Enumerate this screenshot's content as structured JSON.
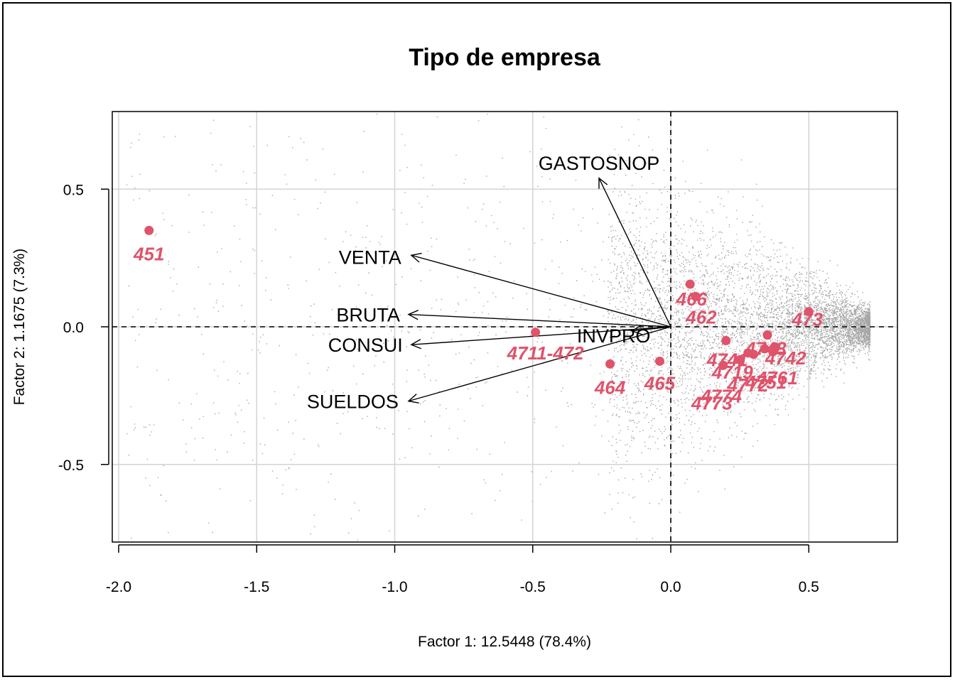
{
  "chart_data": {
    "type": "scatter",
    "title": "Tipo de empresa",
    "xlabel": "Factor 1: 12.5448 (78.4%)",
    "ylabel": "Factor 2: 1.1675 (7.3%)",
    "xlim": [
      -2.0,
      0.75
    ],
    "ylim": [
      -0.75,
      0.75
    ],
    "xticks": [
      -2.0,
      -1.5,
      -1.0,
      -0.5,
      0.0,
      0.5
    ],
    "xtick_labels": [
      "-2.0",
      "-1.5",
      "-1.0",
      "-0.5",
      "0.0",
      "0.5"
    ],
    "yticks": [
      -0.5,
      0.0,
      0.5
    ],
    "ytick_labels": [
      "-0.5",
      "0.0",
      "0.5"
    ],
    "grid": true,
    "colors": {
      "category": "#df536b",
      "background_points": "#a6a6a6",
      "arrows": "#000000",
      "grid": "#d3d3d3"
    },
    "variables": [
      {
        "name": "GASTOSNOP",
        "x": -0.26,
        "y": 0.54
      },
      {
        "name": "VENTA",
        "x": -0.94,
        "y": 0.26
      },
      {
        "name": "BRUTA",
        "x": -0.95,
        "y": 0.045
      },
      {
        "name": "CONSUI",
        "x": -0.94,
        "y": -0.065
      },
      {
        "name": "SUELDOS",
        "x": -0.95,
        "y": -0.27
      },
      {
        "name": "INVPRO",
        "x": -0.14,
        "y": -0.015
      }
    ],
    "categories": [
      {
        "name": "451",
        "x": -1.89,
        "y": 0.35
      },
      {
        "name": "466",
        "x": 0.07,
        "y": 0.155
      },
      {
        "name": "462",
        "x": 0.09,
        "y": 0.11
      },
      {
        "name": "4711-472",
        "x": -0.49,
        "y": -0.02
      },
      {
        "name": "464",
        "x": -0.22,
        "y": -0.135
      },
      {
        "name": "465",
        "x": -0.04,
        "y": -0.125
      },
      {
        "name": "473",
        "x": 0.5,
        "y": 0.055
      },
      {
        "name": "4742",
        "x": 0.38,
        "y": -0.075
      },
      {
        "name": "4761",
        "x": 0.37,
        "y": -0.09
      },
      {
        "name": "4751",
        "x": 0.34,
        "y": -0.08
      },
      {
        "name": "4741",
        "x": 0.2,
        "y": -0.05
      },
      {
        "name": "4743",
        "x": 0.35,
        "y": -0.03
      },
      {
        "name": "4772",
        "x": 0.3,
        "y": -0.1
      },
      {
        "name": "4773",
        "x": 0.19,
        "y": -0.14
      },
      {
        "name": "4774",
        "x": 0.25,
        "y": -0.12
      },
      {
        "name": "4719",
        "x": 0.28,
        "y": -0.095
      }
    ]
  }
}
